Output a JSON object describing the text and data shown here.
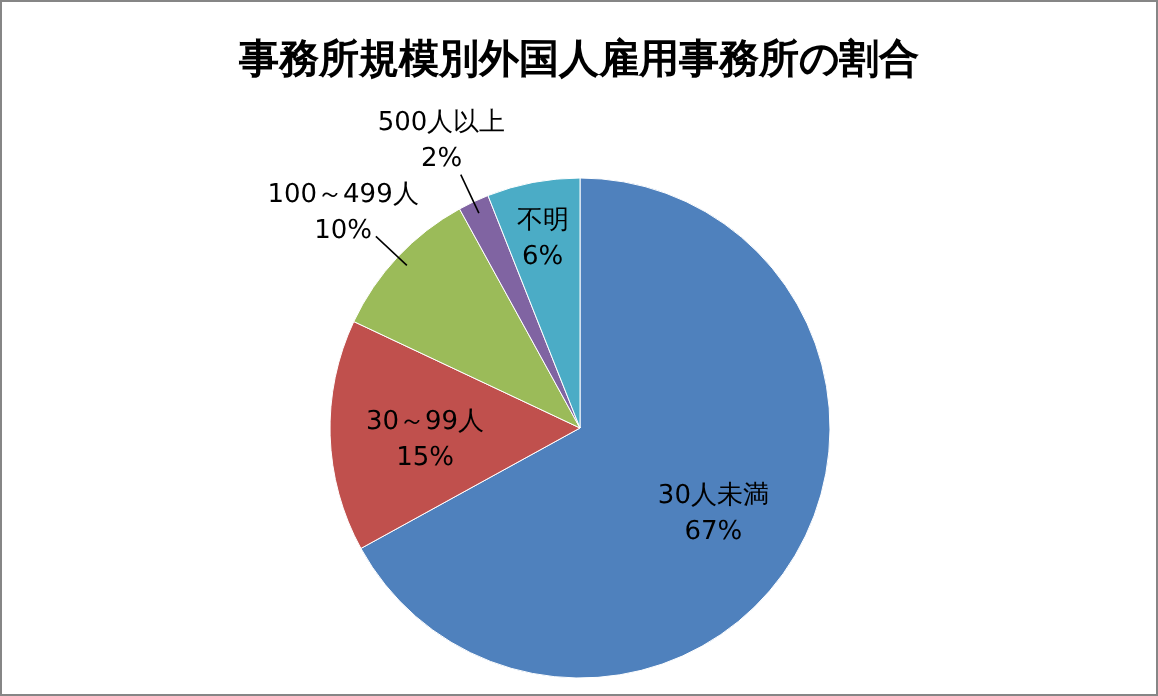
{
  "chart_data": {
    "type": "pie",
    "title": "事務所規模別外国人雇用事務所の割合",
    "categories": [
      "30人未満",
      "30～99人",
      "100～499人",
      "500人以上",
      "不明"
    ],
    "values": [
      67,
      15,
      10,
      2,
      6
    ],
    "value_labels": [
      "67%",
      "15%",
      "10%",
      "2%",
      "6%"
    ],
    "colors": [
      "#4f81bd",
      "#c0504d",
      "#9bbb59",
      "#8064a2",
      "#4bacc6"
    ],
    "legend": false
  }
}
